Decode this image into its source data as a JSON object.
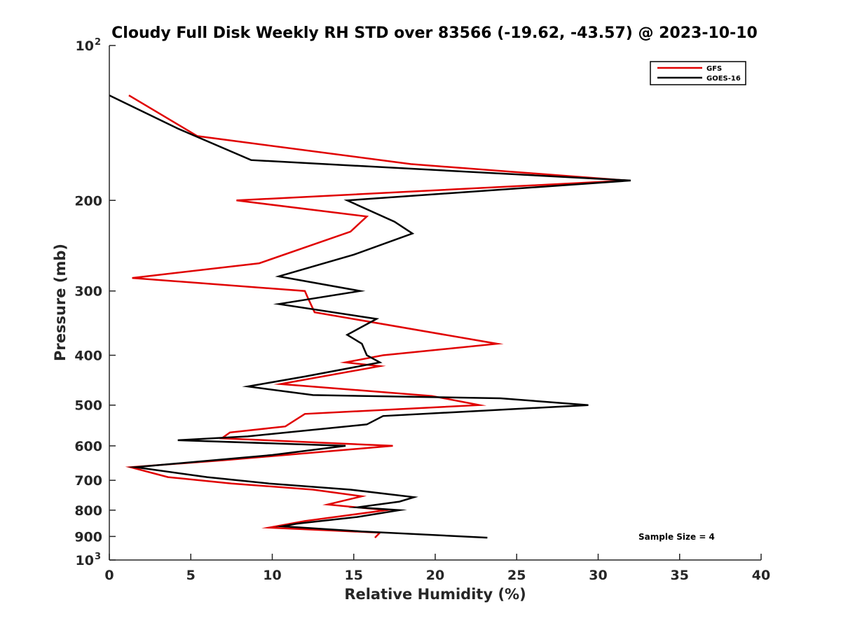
{
  "chart_data": {
    "type": "line",
    "title": "Cloudy Full Disk Weekly RH STD over 83566 (-19.62, -43.57) @ 2023-10-10",
    "xlabel": "Relative Humidity (%)",
    "ylabel": "Pressure (mb)",
    "xlim": [
      0,
      40
    ],
    "ylim": [
      100,
      1000
    ],
    "yscale": "log",
    "y_reversed": true,
    "x_ticks": [
      0,
      5,
      10,
      15,
      20,
      25,
      30,
      35,
      40
    ],
    "x_tick_labels": [
      "0",
      "5",
      "10",
      "15",
      "20",
      "25",
      "30",
      "35",
      "40"
    ],
    "y_ticks": [
      {
        "value": 100,
        "base": "10",
        "exp": "2"
      },
      {
        "value": 200,
        "label": "200"
      },
      {
        "value": 300,
        "label": "300"
      },
      {
        "value": 400,
        "label": "400"
      },
      {
        "value": 500,
        "label": "500"
      },
      {
        "value": 600,
        "label": "600"
      },
      {
        "value": 700,
        "label": "700"
      },
      {
        "value": 800,
        "label": "800"
      },
      {
        "value": 900,
        "label": "900"
      },
      {
        "value": 1000,
        "base": "10",
        "exp": "3"
      }
    ],
    "grid": false,
    "legend_position": "top-right",
    "annotation": "Sample Size = 4",
    "series": [
      {
        "name": "GFS",
        "color": "#e00000",
        "points": [
          [
            1.2,
            125
          ],
          [
            5.4,
            150
          ],
          [
            18.5,
            170
          ],
          [
            31.8,
            183
          ],
          [
            7.8,
            200
          ],
          [
            15.8,
            215
          ],
          [
            14.8,
            230
          ],
          [
            9.2,
            265
          ],
          [
            1.4,
            283
          ],
          [
            12.0,
            300
          ],
          [
            12.2,
            310
          ],
          [
            12.6,
            330
          ],
          [
            23.8,
            380
          ],
          [
            16.8,
            400
          ],
          [
            14.5,
            413
          ],
          [
            16.6,
            420
          ],
          [
            10.5,
            455
          ],
          [
            19.8,
            480
          ],
          [
            22.7,
            500
          ],
          [
            12.0,
            520
          ],
          [
            10.8,
            550
          ],
          [
            7.4,
            565
          ],
          [
            6.9,
            580
          ],
          [
            17.4,
            600
          ],
          [
            7.0,
            640
          ],
          [
            1.3,
            660
          ],
          [
            3.6,
            690
          ],
          [
            7.5,
            710
          ],
          [
            12.5,
            730
          ],
          [
            15.5,
            752
          ],
          [
            13.4,
            780
          ],
          [
            17.0,
            800
          ],
          [
            12.0,
            840
          ],
          [
            9.8,
            865
          ],
          [
            16.6,
            885
          ],
          [
            16.3,
            905
          ]
        ]
      },
      {
        "name": "GOES-16",
        "color": "#000000",
        "points": [
          [
            0.0,
            125
          ],
          [
            4.2,
            145
          ],
          [
            8.7,
            167
          ],
          [
            32.0,
            183
          ],
          [
            14.6,
            200
          ],
          [
            17.5,
            220
          ],
          [
            18.6,
            232
          ],
          [
            15.0,
            255
          ],
          [
            10.4,
            281
          ],
          [
            15.4,
            300
          ],
          [
            10.4,
            318
          ],
          [
            16.4,
            340
          ],
          [
            14.6,
            365
          ],
          [
            15.5,
            380
          ],
          [
            15.8,
            400
          ],
          [
            16.6,
            413
          ],
          [
            12.0,
            440
          ],
          [
            8.5,
            460
          ],
          [
            12.5,
            478
          ],
          [
            24.0,
            485
          ],
          [
            29.4,
            500
          ],
          [
            16.8,
            525
          ],
          [
            15.8,
            545
          ],
          [
            8.5,
            575
          ],
          [
            4.2,
            585
          ],
          [
            14.5,
            600
          ],
          [
            10.0,
            625
          ],
          [
            1.6,
            660
          ],
          [
            6.0,
            690
          ],
          [
            9.8,
            710
          ],
          [
            14.8,
            730
          ],
          [
            18.7,
            755
          ],
          [
            17.8,
            770
          ],
          [
            15.2,
            790
          ],
          [
            17.8,
            800
          ],
          [
            15.2,
            825
          ],
          [
            11.5,
            850
          ],
          [
            10.6,
            860
          ],
          [
            15.5,
            880
          ],
          [
            23.2,
            905
          ]
        ]
      }
    ]
  }
}
